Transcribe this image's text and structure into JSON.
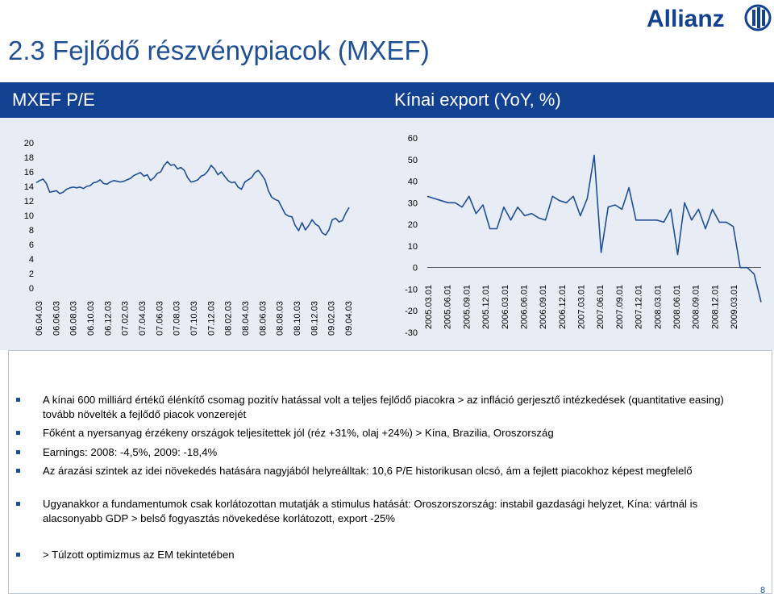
{
  "page": {
    "title": "2.3 Fejlődő részvénypiacok (MXEF)",
    "page_number": "8",
    "logo_text": "Allianz"
  },
  "panels": {
    "left_title": "MXEF P/E",
    "right_title": "Kínai export (YoY, %)"
  },
  "colors": {
    "title_blue": "#1f4f96",
    "bar_blue": "#124191",
    "panel_bg": "#e8ecf4",
    "line_blue": "#1f4f96",
    "bullet_blue": "#1f4f96"
  },
  "chart_data": [
    {
      "type": "line",
      "title": "MXEF P/E",
      "ylim": [
        0,
        20
      ],
      "yticks": [
        "20",
        "18",
        "16",
        "14",
        "12",
        "10",
        "8",
        "6",
        "4",
        "2",
        "0"
      ],
      "x_tick_labels": [
        "06.04.03",
        "06.06.03",
        "06.08.03",
        "06.10.03",
        "06.12.03",
        "07.02.03",
        "07.04.03",
        "07.06.03",
        "07.08.03",
        "07.10.03",
        "07.12.03",
        "08.02.03",
        "08.04.03",
        "08.06.03",
        "08.08.03",
        "08.10.03",
        "08.12.03",
        "09.02.03",
        "09.04.03"
      ],
      "series": [
        {
          "values": [
            14.5,
            14.8,
            15.0,
            14.4,
            13.2,
            13.3,
            13.4,
            13.0,
            13.2,
            13.6,
            13.8,
            13.9,
            13.8,
            13.9,
            13.7,
            14.0,
            14.1,
            14.5,
            14.6,
            14.9,
            14.4,
            14.3,
            14.6,
            14.8,
            14.7,
            14.6,
            14.7,
            14.9,
            15.1,
            15.5,
            15.7,
            15.9,
            15.4,
            15.6,
            14.8,
            15.2,
            15.8,
            16.0,
            16.9,
            17.4,
            16.9,
            17.0,
            16.4,
            16.6,
            16.2,
            15.2,
            14.6,
            14.7,
            14.9,
            15.4,
            15.6,
            16.1,
            16.9,
            16.4,
            15.6,
            16.0,
            15.4,
            14.8,
            14.5,
            14.6,
            13.9,
            13.6,
            14.6,
            14.9,
            15.2,
            15.9,
            16.2,
            15.6,
            14.9,
            13.4,
            12.5,
            12.2,
            12.0,
            11.1,
            10.2,
            9.9,
            9.8,
            8.6,
            7.9,
            9.0,
            8.0,
            8.6,
            9.4,
            8.8,
            8.5,
            7.6,
            7.3,
            8.0,
            9.4,
            9.6,
            9.1,
            9.3,
            10.3,
            11.1
          ]
        }
      ]
    },
    {
      "type": "line",
      "title": "Kínai export (YoY, %)",
      "ylim": [
        -30,
        60
      ],
      "yticks": [
        "60",
        "50",
        "40",
        "30",
        "20",
        "10",
        "0",
        "-10",
        "-20",
        "-30"
      ],
      "x_tick_labels": [
        "2005.03.01",
        "2005.06.01",
        "2005.09.01",
        "2005.12.01",
        "2006.03.01",
        "2006.06.01",
        "2006.09.01",
        "2006.12.01",
        "2007.03.01",
        "2007.06.01",
        "2007.09.01",
        "2007.12.01",
        "2008.03.01",
        "2008.06.01",
        "2008.09.01",
        "2008.12.01",
        "2009.03.01"
      ],
      "series": [
        {
          "values": [
            33,
            32,
            31,
            30,
            30,
            28,
            33,
            25,
            29,
            18,
            18,
            28,
            22,
            28,
            24,
            25,
            23,
            22,
            33,
            31,
            30,
            33,
            24,
            32,
            52,
            7,
            28,
            29,
            27,
            37,
            22,
            22,
            22,
            22,
            21,
            27,
            6,
            30,
            22,
            27,
            18,
            27,
            21,
            21,
            19,
            0,
            0,
            -3,
            -16
          ]
        }
      ]
    }
  ],
  "bullets": [
    {
      "text": "A kínai 600 milliárd értékű élénkítő csomag pozitív hatással volt a teljes fejlődő piacokra > az infláció gerjesztő intézkedések (quantitative easing) tovább növelték a fejlődő piacok vonzerejét"
    },
    {
      "text": "Főként a nyersanyag érzékeny országok teljesítettek jól (réz +31%, olaj +24%) > Kína, Brazilia, Oroszország"
    },
    {
      "text": "Earnings: 2008: -4,5%, 2009: -18,4%"
    },
    {
      "text": "Az árazási szintek az idei növekedés hatására nagyjából helyreálltak: 10,6 P/E historikusan olcsó, ám a fejlett piacokhoz képest megfelelő"
    },
    {
      "text": "Ugyanakkor a fundamentumok csak korlátozottan mutatják a stimulus hatását: Oroszorszország: instabil gazdasági helyzet, Kína: vártnál is alacsonyabb GDP > belső fogyasztás növekedése korlátozott, export -25%"
    },
    {
      "text": "> Túlzott optimizmus az EM tekintetében"
    }
  ]
}
